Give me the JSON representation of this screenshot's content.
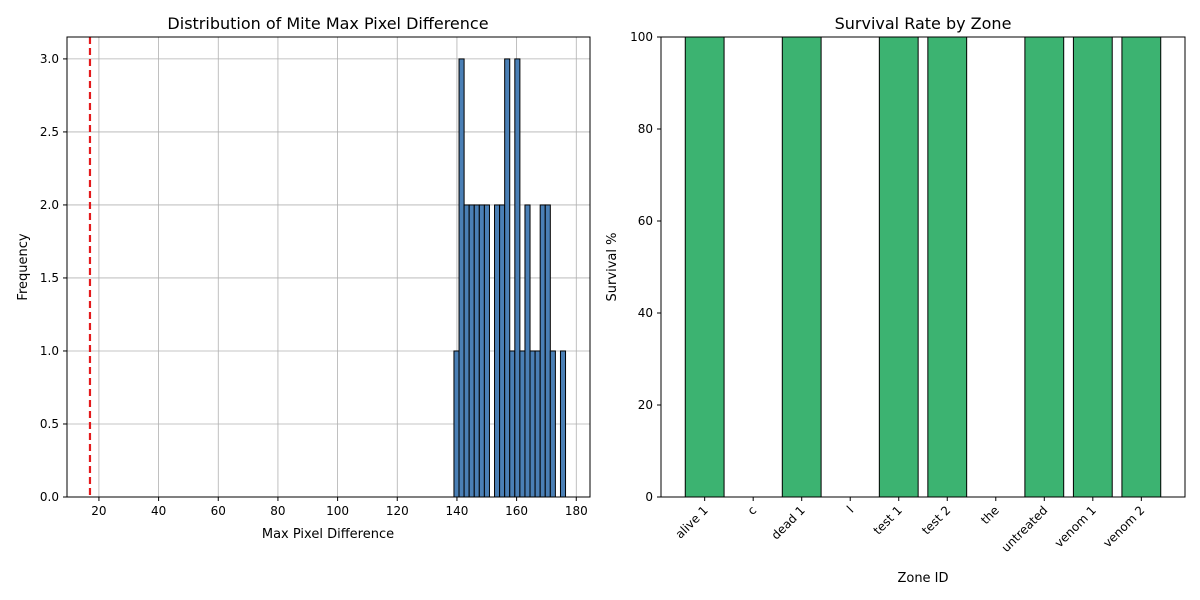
{
  "chart_data": [
    {
      "type": "bar",
      "title": "Distribution of Mite Max Pixel Difference",
      "xlabel": "Max Pixel Difference",
      "ylabel": "Frequency",
      "xlim": [
        9.3,
        184.6
      ],
      "ylim": [
        0,
        3.15
      ],
      "x_ticks": [
        20,
        40,
        60,
        80,
        100,
        120,
        140,
        160,
        180
      ],
      "y_ticks": [
        0.0,
        0.5,
        1.0,
        1.5,
        2.0,
        2.5,
        3.0
      ],
      "y_tick_labels": [
        "0.0",
        "0.5",
        "1.0",
        "1.5",
        "2.0",
        "2.5",
        "3.0"
      ],
      "grid": true,
      "bar_color": "#4a7fb5",
      "edge_color": "#000000",
      "bins": [
        {
          "x0": 139.0,
          "x1": 140.7,
          "count": 1
        },
        {
          "x0": 140.7,
          "x1": 142.4,
          "count": 3
        },
        {
          "x0": 142.4,
          "x1": 144.1,
          "count": 2
        },
        {
          "x0": 144.1,
          "x1": 145.8,
          "count": 2
        },
        {
          "x0": 145.8,
          "x1": 147.5,
          "count": 2
        },
        {
          "x0": 147.5,
          "x1": 149.2,
          "count": 2
        },
        {
          "x0": 149.2,
          "x1": 150.9,
          "count": 2
        },
        {
          "x0": 150.9,
          "x1": 152.6,
          "count": 0
        },
        {
          "x0": 152.6,
          "x1": 154.3,
          "count": 2
        },
        {
          "x0": 154.3,
          "x1": 156.0,
          "count": 2
        },
        {
          "x0": 156.0,
          "x1": 157.7,
          "count": 3
        },
        {
          "x0": 157.7,
          "x1": 159.4,
          "count": 1
        },
        {
          "x0": 159.4,
          "x1": 161.1,
          "count": 3
        },
        {
          "x0": 161.1,
          "x1": 162.8,
          "count": 1
        },
        {
          "x0": 162.8,
          "x1": 164.5,
          "count": 2
        },
        {
          "x0": 164.5,
          "x1": 166.2,
          "count": 1
        },
        {
          "x0": 166.2,
          "x1": 167.9,
          "count": 1
        },
        {
          "x0": 167.9,
          "x1": 169.6,
          "count": 2
        },
        {
          "x0": 169.6,
          "x1": 171.3,
          "count": 2
        },
        {
          "x0": 171.3,
          "x1": 173.0,
          "count": 1
        },
        {
          "x0": 173.0,
          "x1": 174.7,
          "count": 0
        },
        {
          "x0": 174.7,
          "x1": 176.4,
          "count": 1
        }
      ],
      "threshold_line": {
        "x": 17,
        "color": "#e31a1c",
        "style": "dashed"
      }
    },
    {
      "type": "bar",
      "title": "Survival Rate by Zone",
      "xlabel": "Zone ID",
      "ylabel": "Survival %",
      "ylim": [
        0,
        100
      ],
      "y_ticks": [
        0,
        20,
        40,
        60,
        80,
        100
      ],
      "grid": false,
      "bar_color": "#3cb371",
      "edge_color": "#000000",
      "categories": [
        "alive 1",
        "c",
        "dead 1",
        "l",
        "test 1",
        "test 2",
        "the",
        "untreated",
        "venom 1",
        "venom 2"
      ],
      "values": [
        100,
        0,
        100,
        0,
        100,
        100,
        0,
        100,
        100,
        100
      ]
    }
  ]
}
